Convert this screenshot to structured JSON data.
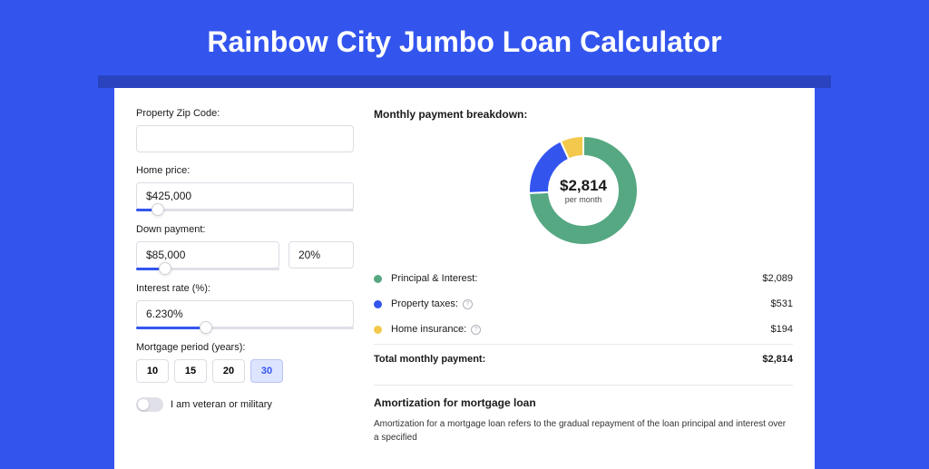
{
  "colors": {
    "page_bg": "#3355ee",
    "shadow": "#2a44c0",
    "card_bg": "#ffffff",
    "text": "#1a1a1a",
    "muted": "#4a4a4a",
    "border": "#dcdce4",
    "slider_track": "#e0e0e8",
    "slider_fill": "#3355ee",
    "active_bg": "#dde4ff",
    "active_border": "#b8c4f5"
  },
  "title": "Rainbow City Jumbo Loan Calculator",
  "form": {
    "zip": {
      "label": "Property Zip Code:",
      "value": ""
    },
    "price": {
      "label": "Home price:",
      "value": "$425,000",
      "slider_pct": 10
    },
    "down": {
      "label": "Down payment:",
      "amount": "$85,000",
      "pct": "20%",
      "slider_pct": 20
    },
    "rate": {
      "label": "Interest rate (%):",
      "value": "6.230%",
      "slider_pct": 32
    },
    "period": {
      "label": "Mortgage period (years):",
      "options": [
        "10",
        "15",
        "20",
        "30"
      ],
      "selected": "30"
    },
    "veteran": {
      "label": "I am veteran or military",
      "checked": false
    }
  },
  "breakdown": {
    "title": "Monthly payment breakdown:",
    "donut": {
      "amount": "$2,814",
      "sub": "per month",
      "slices": [
        {
          "color": "#55a882",
          "pct": 74.24
        },
        {
          "color": "#3355ee",
          "pct": 18.87
        },
        {
          "color": "#f2c94c",
          "pct": 6.89
        }
      ],
      "thickness": 22
    },
    "items": [
      {
        "dot": "#55a882",
        "label": "Principal & Interest:",
        "info": false,
        "value": "$2,089"
      },
      {
        "dot": "#3355ee",
        "label": "Property taxes:",
        "info": true,
        "value": "$531"
      },
      {
        "dot": "#f2c94c",
        "label": "Home insurance:",
        "info": true,
        "value": "$194"
      }
    ],
    "total": {
      "label": "Total monthly payment:",
      "value": "$2,814"
    }
  },
  "amortization": {
    "title": "Amortization for mortgage loan",
    "text": "Amortization for a mortgage loan refers to the gradual repayment of the loan principal and interest over a specified"
  }
}
